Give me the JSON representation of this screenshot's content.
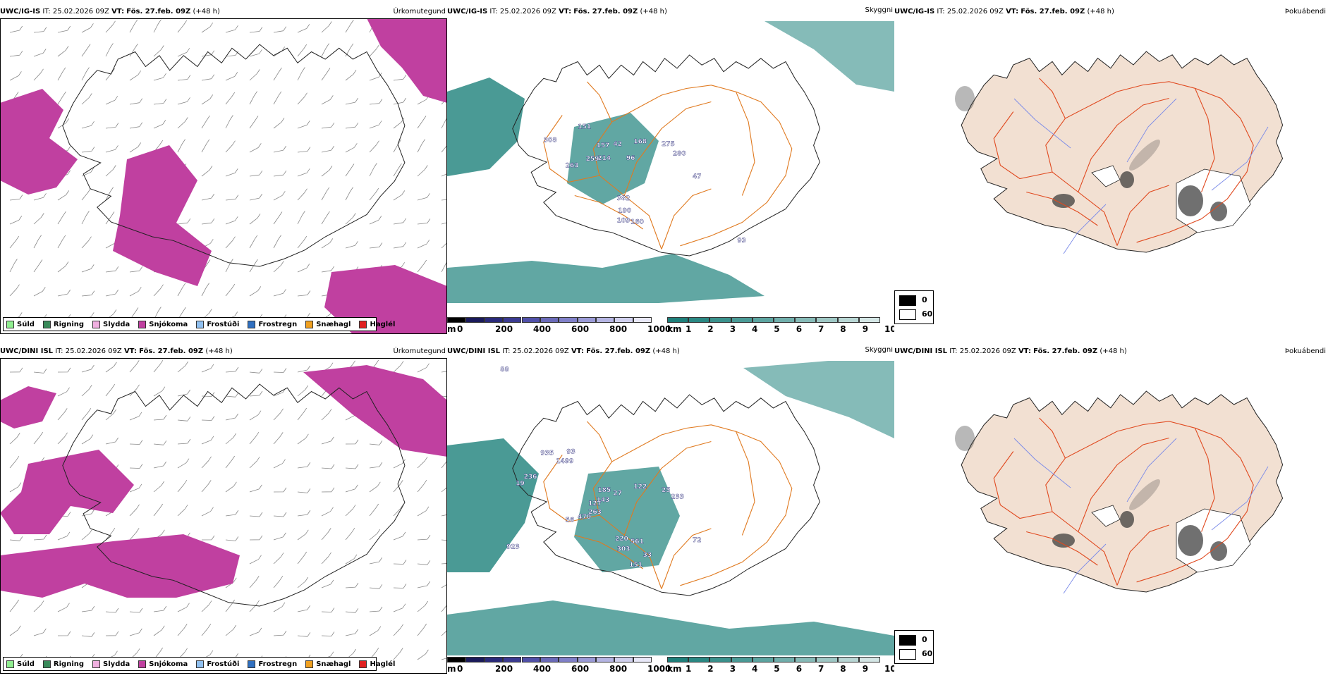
{
  "rows": [
    {
      "model": "UWC/IG-IS",
      "it_label": "IT:",
      "it_value": "25.02.2026 09Z",
      "vt_label": "VT:",
      "vt_value": "Fös. 27.feb. 09Z",
      "lead": "(+48 h)"
    },
    {
      "model": "UWC/DINI ISL",
      "it_label": "IT:",
      "it_value": "25.02.2026 09Z",
      "vt_label": "VT:",
      "vt_value": "Fös. 27.feb. 09Z",
      "lead": "(+48 h)"
    }
  ],
  "panel_titles": {
    "precip_type": "Úrkomutegund",
    "visibility": "Skyggni",
    "fog": "Þokuábendi"
  },
  "precip_legend": [
    {
      "label": "Súld",
      "color": "#90ee90"
    },
    {
      "label": "Rigning",
      "color": "#3a8a5a"
    },
    {
      "label": "Slydda",
      "color": "#f0b0e0"
    },
    {
      "label": "Snjókoma",
      "color": "#c040a0"
    },
    {
      "label": "Frostúði",
      "color": "#90c0f0"
    },
    {
      "label": "Frostregn",
      "color": "#3070c0"
    },
    {
      "label": "Snæhagl",
      "color": "#f0a020"
    },
    {
      "label": "Haglél",
      "color": "#e02020"
    }
  ],
  "ceiling_scale": {
    "unit": "m",
    "ticks": [
      "0",
      "200",
      "400",
      "600",
      "800",
      "1000"
    ],
    "colors": [
      "#000000",
      "#1a1a5a",
      "#2a2a7a",
      "#3a3a90",
      "#5050a8",
      "#6a6ab8",
      "#8080c8",
      "#9a9ad6",
      "#b4b4e2",
      "#d0d0ee",
      "#e8e8f8"
    ]
  },
  "visibility_scale": {
    "unit": "km",
    "ticks": [
      "1",
      "2",
      "3",
      "4",
      "5",
      "6",
      "7",
      "8",
      "9",
      "10"
    ],
    "colors": [
      "#1e7f7a",
      "#2a8883",
      "#3a918c",
      "#4a9a96",
      "#5ca4a0",
      "#70aeab",
      "#86bab7",
      "#9ec7c4",
      "#b8d6d4",
      "#d4e6e5"
    ]
  },
  "fog_legend": {
    "max_label": "0",
    "min_label": "60"
  },
  "labels_top": [
    "308",
    "151",
    "157",
    "42",
    "168",
    "275",
    "280",
    "259",
    "214",
    "96",
    "263",
    "382",
    "190",
    "109",
    "160",
    "47",
    "93"
  ],
  "labels_bottom": [
    "88",
    "935",
    "93",
    "1499",
    "236",
    "19",
    "185",
    "27",
    "122",
    "25",
    "233",
    "127",
    "143",
    "263",
    "470",
    "56",
    "923",
    "220",
    "561",
    "303",
    "33",
    "72",
    "151"
  ]
}
